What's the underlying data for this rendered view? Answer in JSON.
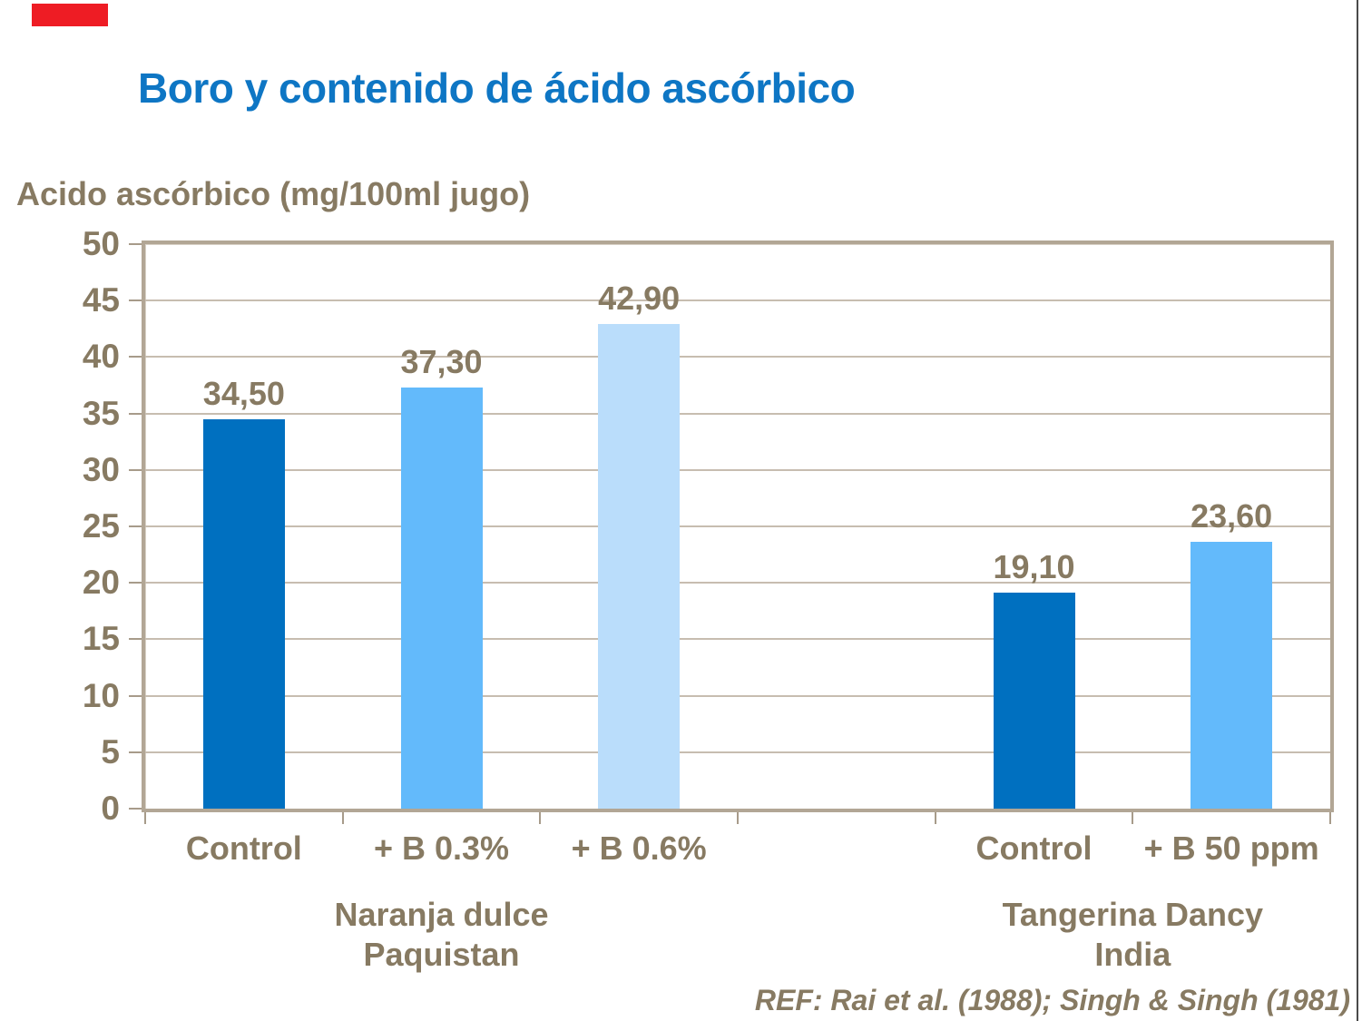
{
  "slide": {
    "title": "Boro y contenido de ácido ascórbico",
    "reference": "REF: Rai et al. (1988); Singh & Singh (1981)"
  },
  "chart_data": {
    "type": "bar",
    "title": "Boro y contenido de ácido ascórbico",
    "ylabel": "Acido ascórbico (mg/100ml jugo)",
    "xlabel": "",
    "ylim": [
      0,
      50
    ],
    "ytick_step": 5,
    "yticks": [
      0,
      5,
      10,
      15,
      20,
      25,
      30,
      35,
      40,
      45,
      50
    ],
    "grid": true,
    "legend": null,
    "categories": [
      "Control",
      "+ B 0.3%",
      "+ B 0.6%",
      "",
      "Control",
      "+ B 50 ppm"
    ],
    "values": [
      34.5,
      37.3,
      42.9,
      null,
      19.1,
      23.6
    ],
    "value_labels": [
      "34,50",
      "37,30",
      "42,90",
      null,
      "19,10",
      "23,60"
    ],
    "bar_colors": [
      "#0070C0",
      "#63BAFB",
      "#BADDFB",
      null,
      "#0070C0",
      "#63BAFB"
    ],
    "groups": [
      {
        "label_lines": [
          "Naranja dulce",
          "Paquistan"
        ],
        "center_slot": 1
      },
      {
        "label_lines": [
          "Tangerina Dancy",
          "India"
        ],
        "center_slot": 4.5
      }
    ]
  },
  "colors": {
    "title": "#0E76C4",
    "axis_text": "#877A62",
    "gridline": "#C7BDB0",
    "plot_border": "#B2A695",
    "plot_border_inner": "#D8D1C6",
    "tick": "#A79B8A",
    "red_marker": "#EE1C24",
    "right_edge": "#4A4A4A"
  }
}
